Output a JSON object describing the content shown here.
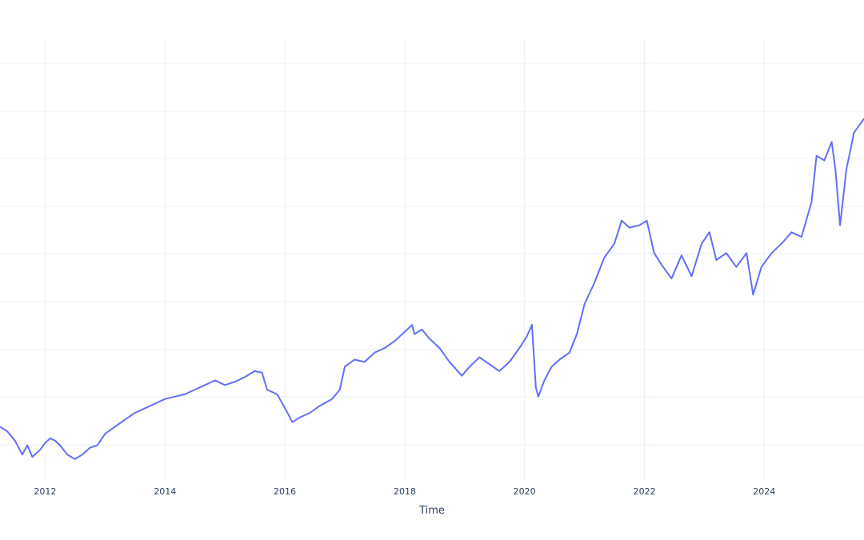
{
  "chart_data": {
    "type": "line",
    "title": "",
    "xlabel": "Time",
    "ylabel": "",
    "grid": true,
    "legend": "none",
    "x_tick_labels": [
      "2012",
      "2014",
      "2016",
      "2018",
      "2020",
      "2022",
      "2024"
    ],
    "xlim": [
      "2011-04-01",
      "2025-08-31"
    ],
    "ylim": [
      1.5,
      11.0
    ],
    "series": [
      {
        "color": "#636efa",
        "points": [
          [
            "2011-04-01",
            2.65
          ],
          [
            "2011-05-15",
            2.55
          ],
          [
            "2011-07-01",
            2.35
          ],
          [
            "2011-08-15",
            2.05
          ],
          [
            "2011-09-15",
            2.25
          ],
          [
            "2011-10-15",
            2.0
          ],
          [
            "2011-12-01",
            2.15
          ],
          [
            "2012-01-01",
            2.3
          ],
          [
            "2012-02-01",
            2.4
          ],
          [
            "2012-03-01",
            2.35
          ],
          [
            "2012-04-01",
            2.25
          ],
          [
            "2012-05-15",
            2.05
          ],
          [
            "2012-07-01",
            1.95
          ],
          [
            "2012-08-15",
            2.05
          ],
          [
            "2012-10-01",
            2.2
          ],
          [
            "2012-11-15",
            2.25
          ],
          [
            "2013-01-01",
            2.5
          ],
          [
            "2013-03-01",
            2.65
          ],
          [
            "2013-05-01",
            2.8
          ],
          [
            "2013-07-01",
            2.95
          ],
          [
            "2013-09-01",
            3.05
          ],
          [
            "2013-11-01",
            3.15
          ],
          [
            "2014-01-01",
            3.25
          ],
          [
            "2014-03-01",
            3.3
          ],
          [
            "2014-05-01",
            3.35
          ],
          [
            "2014-07-01",
            3.45
          ],
          [
            "2014-09-01",
            3.55
          ],
          [
            "2014-11-01",
            3.65
          ],
          [
            "2015-01-01",
            3.55
          ],
          [
            "2015-03-01",
            3.62
          ],
          [
            "2015-05-01",
            3.72
          ],
          [
            "2015-07-01",
            3.85
          ],
          [
            "2015-08-15",
            3.82
          ],
          [
            "2015-09-15",
            3.45
          ],
          [
            "2015-11-15",
            3.35
          ],
          [
            "2016-01-10",
            3.0
          ],
          [
            "2016-02-15",
            2.75
          ],
          [
            "2016-04-01",
            2.85
          ],
          [
            "2016-06-01",
            2.95
          ],
          [
            "2016-08-01",
            3.1
          ],
          [
            "2016-10-15",
            3.25
          ],
          [
            "2016-12-01",
            3.45
          ],
          [
            "2017-01-01",
            3.95
          ],
          [
            "2017-03-01",
            4.1
          ],
          [
            "2017-05-01",
            4.05
          ],
          [
            "2017-07-01",
            4.25
          ],
          [
            "2017-09-01",
            4.35
          ],
          [
            "2017-11-01",
            4.5
          ],
          [
            "2018-01-01",
            4.7
          ],
          [
            "2018-02-15",
            4.85
          ],
          [
            "2018-03-01",
            4.65
          ],
          [
            "2018-04-15",
            4.75
          ],
          [
            "2018-06-01",
            4.55
          ],
          [
            "2018-08-01",
            4.35
          ],
          [
            "2018-10-01",
            4.05
          ],
          [
            "2018-12-15",
            3.75
          ],
          [
            "2019-02-01",
            3.95
          ],
          [
            "2019-04-01",
            4.15
          ],
          [
            "2019-06-01",
            4.0
          ],
          [
            "2019-08-01",
            3.85
          ],
          [
            "2019-10-01",
            4.05
          ],
          [
            "2019-12-01",
            4.35
          ],
          [
            "2020-01-15",
            4.6
          ],
          [
            "2020-02-15",
            4.85
          ],
          [
            "2020-03-10",
            3.5
          ],
          [
            "2020-03-25",
            3.3
          ],
          [
            "2020-05-01",
            3.65
          ],
          [
            "2020-06-15",
            3.95
          ],
          [
            "2020-08-01",
            4.1
          ],
          [
            "2020-10-01",
            4.25
          ],
          [
            "2020-11-15",
            4.65
          ],
          [
            "2021-01-01",
            5.3
          ],
          [
            "2021-03-01",
            5.75
          ],
          [
            "2021-05-01",
            6.3
          ],
          [
            "2021-07-01",
            6.6
          ],
          [
            "2021-08-15",
            7.1
          ],
          [
            "2021-10-01",
            6.95
          ],
          [
            "2021-12-01",
            7.0
          ],
          [
            "2022-01-15",
            7.1
          ],
          [
            "2022-03-01",
            6.4
          ],
          [
            "2022-04-15",
            6.15
          ],
          [
            "2022-06-15",
            5.85
          ],
          [
            "2022-08-15",
            6.35
          ],
          [
            "2022-10-15",
            5.9
          ],
          [
            "2022-12-15",
            6.6
          ],
          [
            "2023-02-01",
            6.85
          ],
          [
            "2023-03-15",
            6.25
          ],
          [
            "2023-05-15",
            6.4
          ],
          [
            "2023-07-15",
            6.1
          ],
          [
            "2023-09-15",
            6.4
          ],
          [
            "2023-10-25",
            5.5
          ],
          [
            "2023-12-15",
            6.1
          ],
          [
            "2024-02-15",
            6.4
          ],
          [
            "2024-04-15",
            6.6
          ],
          [
            "2024-06-15",
            6.85
          ],
          [
            "2024-08-15",
            6.75
          ],
          [
            "2024-10-15",
            7.5
          ],
          [
            "2024-11-15",
            8.5
          ],
          [
            "2025-01-01",
            8.4
          ],
          [
            "2025-02-15",
            8.8
          ],
          [
            "2025-03-10",
            8.2
          ],
          [
            "2025-04-07",
            7.0
          ],
          [
            "2025-05-15",
            8.2
          ],
          [
            "2025-07-01",
            9.0
          ],
          [
            "2025-08-31",
            9.3
          ]
        ]
      }
    ]
  }
}
